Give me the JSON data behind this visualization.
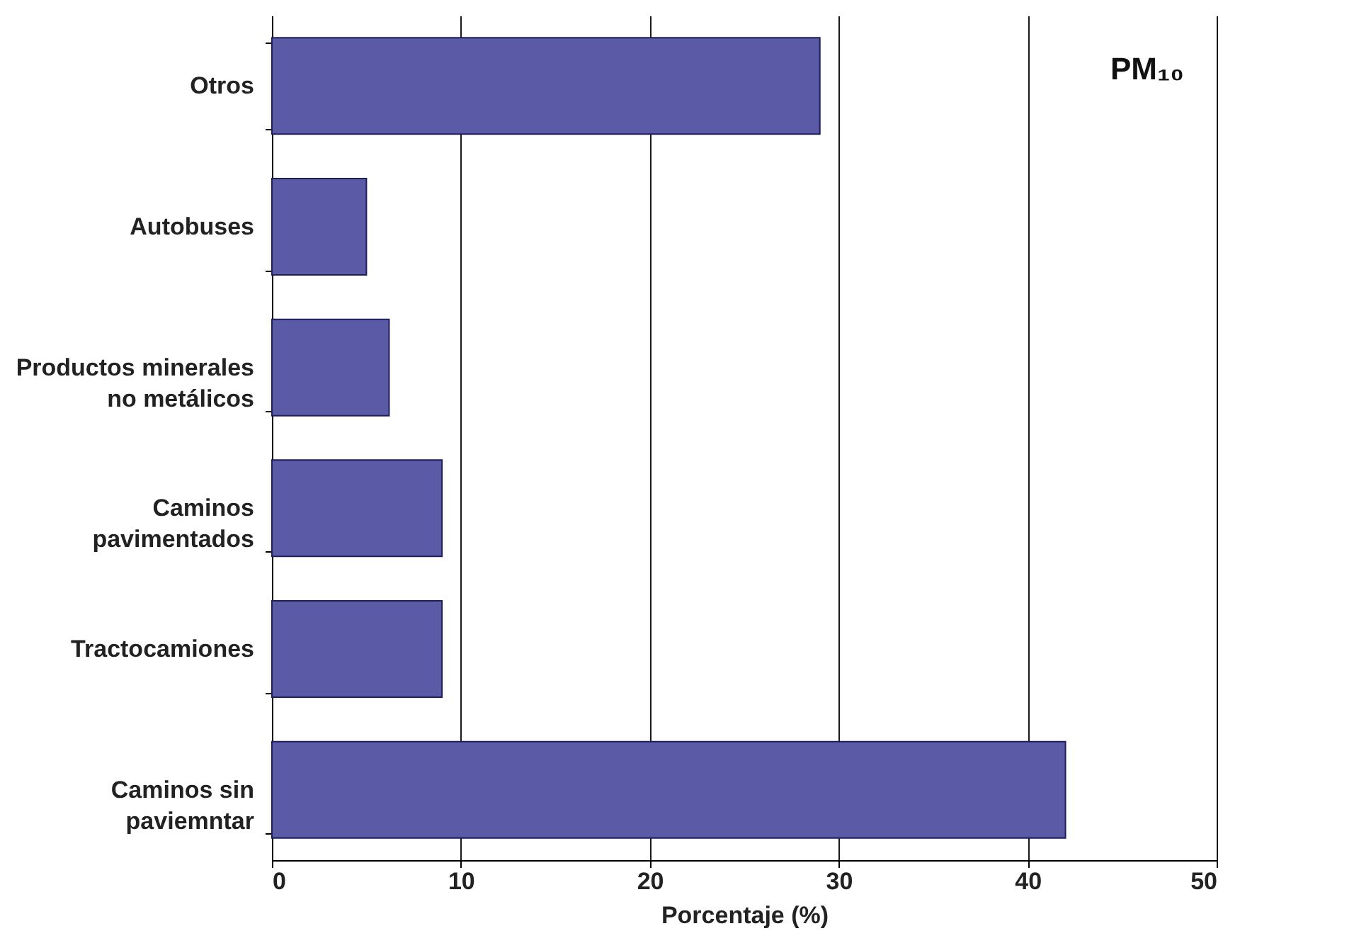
{
  "chart_data": {
    "type": "bar",
    "orientation": "horizontal",
    "xlabel": "Porcentaje (%)",
    "annotations": [
      "PM₁₀"
    ],
    "categories": [
      "Otros",
      "Autobuses",
      "Productos minerales\nno metálicos",
      "Caminos\npavimentados",
      "Tractocamiones",
      "Caminos sin\npaviemntar"
    ],
    "values": [
      29,
      5,
      6.2,
      9,
      9,
      42
    ],
    "color": "#5a5aa6",
    "xlim": [
      0,
      50
    ],
    "xticks": [
      0,
      10,
      20,
      30,
      40,
      50
    ],
    "grid": "x"
  }
}
